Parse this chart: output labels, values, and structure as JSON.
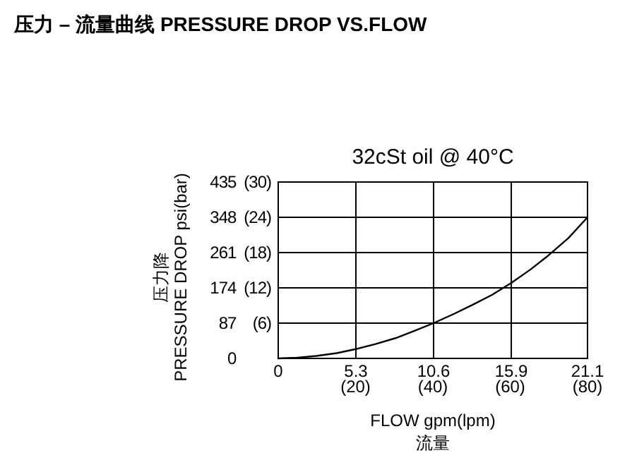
{
  "chart_data": {
    "type": "line",
    "title": "压力 – 流量曲线 PRESSURE DROP VS.FLOW",
    "subtitle": "32cSt  oil @ 40°C",
    "xlabel": "FLOW gpm(lpm)\n流量",
    "ylabel": "压力降\nPRESSURE DROP psi(bar)",
    "x": [
      0,
      1.3,
      2.6,
      4,
      5.3,
      6.6,
      8,
      9.3,
      10.6,
      12,
      13.3,
      14.6,
      15.9,
      17.2,
      18.3,
      19.8,
      21.1
    ],
    "series": [
      {
        "color": "#000000",
        "values": [
          0,
          2,
          6,
          13,
          23,
          35,
          50,
          68,
          87,
          110,
          133,
          157,
          186,
          219,
          250,
          297,
          348
        ]
      }
    ],
    "xlim": [
      0,
      21.1
    ],
    "ylim": [
      0,
      435
    ],
    "xticks": [
      0,
      5.3,
      10.6,
      15.9,
      21.1
    ],
    "x2lim": [
      0,
      80
    ],
    "x2ticks": [
      {
        "value": 20,
        "label": "(20)"
      },
      {
        "value": 40,
        "label": "(40)"
      },
      {
        "value": 60,
        "label": "(60)"
      },
      {
        "value": 80,
        "label": "(80)"
      }
    ],
    "yticks": [
      0,
      87,
      174,
      261,
      348,
      435
    ],
    "y2lim": [
      0,
      30
    ],
    "y2ticks": [
      {
        "value": 6,
        "label": "(6)"
      },
      {
        "value": 12,
        "label": "(12)"
      },
      {
        "value": 18,
        "label": "(18)"
      },
      {
        "value": 24,
        "label": "(24)"
      },
      {
        "value": 30,
        "label": "(30)"
      }
    ],
    "grid": true,
    "marker": "none",
    "line_style": "solid"
  }
}
